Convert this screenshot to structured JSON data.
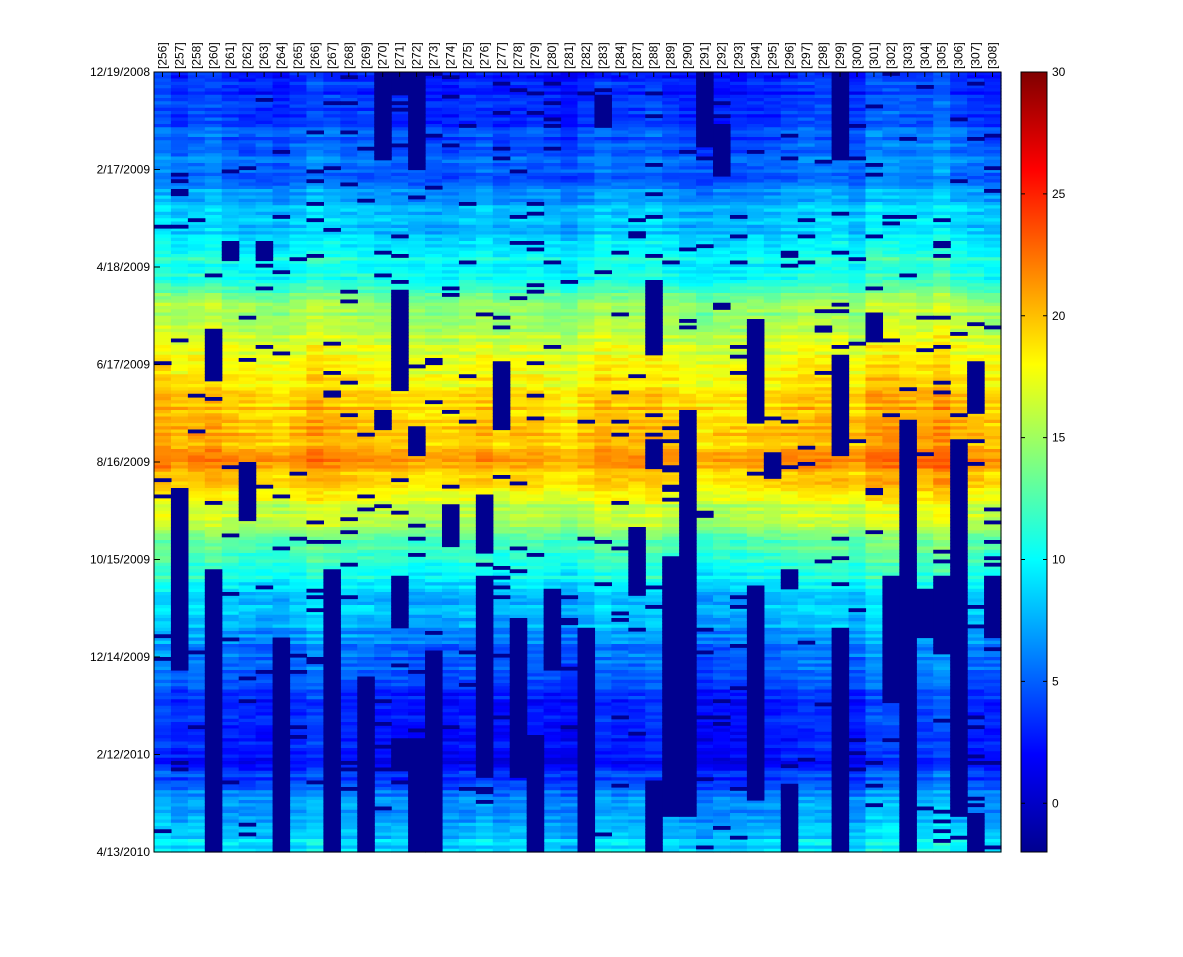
{
  "chart_data": {
    "type": "heatmap",
    "title": "",
    "xlabel": "",
    "ylabel": "",
    "x_categories": [
      "[256]",
      "[257]",
      "[258]",
      "[260]",
      "[261]",
      "[262]",
      "[263]",
      "[264]",
      "[265]",
      "[266]",
      "[267]",
      "[268]",
      "[269]",
      "[270]",
      "[271]",
      "[272]",
      "[273]",
      "[274]",
      "[275]",
      "[276]",
      "[277]",
      "[278]",
      "[279]",
      "[280]",
      "[281]",
      "[282]",
      "[283]",
      "[284]",
      "[287]",
      "[288]",
      "[289]",
      "[290]",
      "[291]",
      "[292]",
      "[293]",
      "[294]",
      "[295]",
      "[296]",
      "[297]",
      "[298]",
      "[299]",
      "[300]",
      "[301]",
      "[302]",
      "[303]",
      "[304]",
      "[305]",
      "[306]",
      "[307]",
      "[308]"
    ],
    "y_ticks": [
      "12/19/2008",
      "2/17/2009",
      "4/18/2009",
      "6/17/2009",
      "8/16/2009",
      "10/15/2009",
      "12/14/2009",
      "2/12/2010",
      "4/13/2010"
    ],
    "y_range": [
      "12/19/2008",
      "4/13/2010"
    ],
    "color_range": [
      -2,
      30
    ],
    "colorbar_ticks": [
      0,
      5,
      10,
      15,
      20,
      25,
      30
    ],
    "colormap": "jet",
    "missing_color": "#00008f",
    "seasonal_profile": {
      "description_points_month_value": [
        [
          "12/19/2008",
          2.5
        ],
        [
          "2/17/2009",
          5.0
        ],
        [
          "3/20/2009",
          8.0
        ],
        [
          "4/18/2009",
          10.5
        ],
        [
          "5/18/2009",
          15.0
        ],
        [
          "6/17/2009",
          17.5
        ],
        [
          "7/17/2009",
          19.5
        ],
        [
          "8/16/2009",
          20.5
        ],
        [
          "9/15/2009",
          16.0
        ],
        [
          "10/15/2009",
          11.0
        ],
        [
          "11/14/2009",
          8.0
        ],
        [
          "12/14/2009",
          5.0
        ],
        [
          "1/13/2010",
          3.0
        ],
        [
          "2/12/2010",
          2.0
        ],
        [
          "3/14/2010",
          6.0
        ],
        [
          "4/13/2010",
          9.0
        ]
      ]
    },
    "column_offsets": [
      1.5,
      0.5,
      1.0,
      1.5,
      0.5,
      0.0,
      0.0,
      -0.5,
      0.5,
      1.5,
      1.0,
      0.5,
      0.5,
      0.0,
      0.0,
      -0.5,
      -0.5,
      -0.5,
      0.0,
      0.5,
      -0.5,
      0.0,
      0.0,
      -0.5,
      -1.0,
      0.0,
      1.0,
      0.5,
      0.5,
      1.0,
      0.0,
      -0.5,
      -1.0,
      -0.5,
      -0.5,
      0.0,
      0.0,
      0.5,
      1.0,
      1.0,
      1.0,
      0.0,
      2.0,
      2.0,
      1.5,
      1.5,
      2.5,
      1.0,
      0.5,
      0.0
    ],
    "missing_blocks": [
      {
        "col": "[260]",
        "from": "5/25/2009",
        "to": "6/26/2009"
      },
      {
        "col": "[260]",
        "from": "10/20/2009",
        "to": "4/13/2010"
      },
      {
        "col": "[257]",
        "from": "9/01/2009",
        "to": "12/20/2009"
      },
      {
        "col": "[261]",
        "from": "4/01/2009",
        "to": "4/10/2009"
      },
      {
        "col": "[262]",
        "from": "8/16/2009",
        "to": "9/20/2009"
      },
      {
        "col": "[263]",
        "from": "4/01/2009",
        "to": "4/12/2009"
      },
      {
        "col": "[264]",
        "from": "12/01/2009",
        "to": "4/13/2010"
      },
      {
        "col": "[267]",
        "from": "10/20/2009",
        "to": "4/13/2010"
      },
      {
        "col": "[269]",
        "from": "12/25/2009",
        "to": "4/13/2010"
      },
      {
        "col": "[270]",
        "from": "12/19/2008",
        "to": "2/10/2009"
      },
      {
        "col": "[270]",
        "from": "7/15/2009",
        "to": "7/25/2009"
      },
      {
        "col": "[271]",
        "from": "12/19/2008",
        "to": "1/01/2009"
      },
      {
        "col": "[271]",
        "from": "5/01/2009",
        "to": "5/30/2009"
      },
      {
        "col": "[271]",
        "from": "6/01/2009",
        "to": "7/01/2009"
      },
      {
        "col": "[271]",
        "from": "10/25/2009",
        "to": "11/25/2009"
      },
      {
        "col": "[271]",
        "from": "2/01/2010",
        "to": "2/20/2010"
      },
      {
        "col": "[272]",
        "from": "12/19/2008",
        "to": "2/15/2009"
      },
      {
        "col": "[272]",
        "from": "7/25/2009",
        "to": "8/10/2009"
      },
      {
        "col": "[272]",
        "from": "2/01/2010",
        "to": "4/13/2010"
      },
      {
        "col": "[273]",
        "from": "12/10/2009",
        "to": "4/13/2010"
      },
      {
        "col": "[274]",
        "from": "9/10/2009",
        "to": "10/05/2009"
      },
      {
        "col": "[276]",
        "from": "9/05/2009",
        "to": "10/10/2009"
      },
      {
        "col": "[276]",
        "from": "10/25/2009",
        "to": "2/25/2010"
      },
      {
        "col": "[277]",
        "from": "6/15/2009",
        "to": "7/25/2009"
      },
      {
        "col": "[278]",
        "from": "11/20/2009",
        "to": "2/25/2010"
      },
      {
        "col": "[279]",
        "from": "2/01/2010",
        "to": "4/13/2010"
      },
      {
        "col": "[280]",
        "from": "11/01/2009",
        "to": "12/20/2009"
      },
      {
        "col": "[282]",
        "from": "11/25/2009",
        "to": "4/13/2010"
      },
      {
        "col": "[283]",
        "from": "1/01/2009",
        "to": "1/20/2009"
      },
      {
        "col": "[287]",
        "from": "9/25/2009",
        "to": "11/05/2009"
      },
      {
        "col": "[288]",
        "from": "4/25/2009",
        "to": "6/10/2009"
      },
      {
        "col": "[288]",
        "from": "8/01/2009",
        "to": "8/16/2009"
      },
      {
        "col": "[288]",
        "from": "3/01/2010",
        "to": "4/13/2010"
      },
      {
        "col": "[289]",
        "from": "10/15/2009",
        "to": "3/20/2010"
      },
      {
        "col": "[290]",
        "from": "7/15/2009",
        "to": "3/20/2010"
      },
      {
        "col": "[291]",
        "from": "12/19/2008",
        "to": "1/30/2009"
      },
      {
        "col": "[292]",
        "from": "1/20/2009",
        "to": "2/20/2009"
      },
      {
        "col": "[294]",
        "from": "5/20/2009",
        "to": "7/20/2009"
      },
      {
        "col": "[294]",
        "from": "10/30/2009",
        "to": "3/10/2010"
      },
      {
        "col": "[295]",
        "from": "8/10/2009",
        "to": "8/25/2009"
      },
      {
        "col": "[296]",
        "from": "10/20/2009",
        "to": "11/01/2009"
      },
      {
        "col": "[296]",
        "from": "3/01/2010",
        "to": "4/13/2010"
      },
      {
        "col": "[299]",
        "from": "12/19/2008",
        "to": "2/10/2009"
      },
      {
        "col": "[299]",
        "from": "6/10/2009",
        "to": "8/10/2009"
      },
      {
        "col": "[299]",
        "from": "11/25/2009",
        "to": "4/13/2010"
      },
      {
        "col": "[301]",
        "from": "5/15/2009",
        "to": "6/01/2009"
      },
      {
        "col": "[302]",
        "from": "10/25/2009",
        "to": "1/10/2010"
      },
      {
        "col": "[303]",
        "from": "7/20/2009",
        "to": "4/13/2010"
      },
      {
        "col": "[304]",
        "from": "11/01/2009",
        "to": "12/01/2009"
      },
      {
        "col": "[305]",
        "from": "10/25/2009",
        "to": "12/10/2009"
      },
      {
        "col": "[306]",
        "from": "8/01/2009",
        "to": "3/20/2010"
      },
      {
        "col": "[307]",
        "from": "6/15/2009",
        "to": "7/15/2009"
      },
      {
        "col": "[307]",
        "from": "3/20/2010",
        "to": "4/13/2010"
      },
      {
        "col": "[308]",
        "from": "10/25/2009",
        "to": "12/01/2009"
      }
    ]
  }
}
